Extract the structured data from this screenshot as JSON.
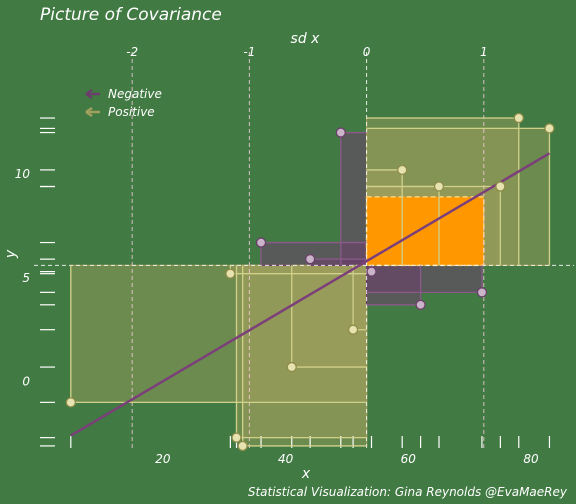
{
  "chart_data": {
    "type": "scatter",
    "title": "Picture of Covariance",
    "caption": "Statistical Visualization: Gina Reynolds @EvaMaeRey",
    "xlabel": "x",
    "ylabel": "y",
    "top_axis_label": "sd x",
    "xlim": [
      -1,
      87
    ],
    "ylim": [
      -3.2,
      15.4
    ],
    "x_ticks": [
      20,
      40,
      60,
      80
    ],
    "y_ticks": [
      0,
      5,
      10
    ],
    "top_ticks": [
      -2,
      -1,
      0,
      1
    ],
    "mean": {
      "x": 53.2,
      "y": 5.6
    },
    "sd_x": 19.1,
    "sd_y": 3.3,
    "fit_line": {
      "x": [
        5,
        83
      ],
      "y": [
        -2.6,
        11.0
      ]
    },
    "legend": {
      "position": "top-left",
      "items": [
        {
          "label": "Negative",
          "color": "#6b3f6b"
        },
        {
          "label": "Positive",
          "color": "#a2a05e"
        }
      ]
    },
    "colors": {
      "background": "#417a43",
      "negative": "#6b3f6b",
      "positive": "#a2a05e",
      "sd_box": "#ff9800",
      "fit_line": "#7b3f7a",
      "guide": "#ffffff"
    },
    "points": [
      {
        "x": 5,
        "y": -1.0
      },
      {
        "x": 32,
        "y": -2.7
      },
      {
        "x": 33,
        "y": -3.1
      },
      {
        "x": 31,
        "y": 5.2
      },
      {
        "x": 36,
        "y": 6.7
      },
      {
        "x": 41,
        "y": 0.7
      },
      {
        "x": 44,
        "y": 5.9
      },
      {
        "x": 49,
        "y": 12.0
      },
      {
        "x": 51,
        "y": 2.5
      },
      {
        "x": 54,
        "y": 5.3
      },
      {
        "x": 59,
        "y": 10.2
      },
      {
        "x": 62,
        "y": 3.7
      },
      {
        "x": 65,
        "y": 9.4
      },
      {
        "x": 72,
        "y": 4.3
      },
      {
        "x": 75,
        "y": 9.4
      },
      {
        "x": 78,
        "y": 12.7
      },
      {
        "x": 83,
        "y": 12.2
      }
    ]
  }
}
